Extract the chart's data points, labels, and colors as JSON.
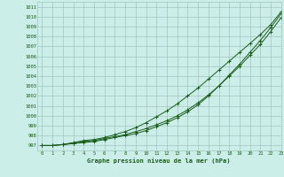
{
  "xlabel": "Graphe pression niveau de la mer (hPa)",
  "ylim": [
    996.5,
    1011.5
  ],
  "xlim": [
    -0.5,
    23
  ],
  "yticks": [
    997,
    998,
    999,
    1000,
    1001,
    1002,
    1003,
    1004,
    1005,
    1006,
    1007,
    1008,
    1009,
    1010,
    1011
  ],
  "xticks": [
    0,
    1,
    2,
    3,
    4,
    5,
    6,
    7,
    8,
    9,
    10,
    11,
    12,
    13,
    14,
    15,
    16,
    17,
    18,
    19,
    20,
    21,
    22,
    23
  ],
  "background_color": "#cceee8",
  "grid_color": "#99bbbb",
  "line_color": "#1a5c1a",
  "marker_color": "#1a5c1a",
  "line1": [
    997.0,
    997.0,
    997.1,
    997.3,
    997.5,
    997.6,
    997.8,
    998.1,
    998.4,
    998.8,
    999.3,
    999.9,
    1000.5,
    1001.2,
    1002.0,
    1002.8,
    1003.7,
    1004.6,
    1005.5,
    1006.4,
    1007.3,
    1008.2,
    1009.2,
    1010.5
  ],
  "line2": [
    997.0,
    997.0,
    997.1,
    997.2,
    997.4,
    997.5,
    997.7,
    997.9,
    998.1,
    998.4,
    998.7,
    999.1,
    999.5,
    1000.0,
    1000.6,
    1001.3,
    1002.1,
    1003.0,
    1004.0,
    1005.0,
    1006.1,
    1007.2,
    1008.5,
    1009.9
  ],
  "line3": [
    997.0,
    997.0,
    997.1,
    997.2,
    997.3,
    997.4,
    997.6,
    997.8,
    998.0,
    998.2,
    998.5,
    998.9,
    999.3,
    999.8,
    1000.4,
    1001.1,
    1002.0,
    1003.0,
    1004.1,
    1005.2,
    1006.4,
    1007.6,
    1008.9,
    1010.3
  ]
}
